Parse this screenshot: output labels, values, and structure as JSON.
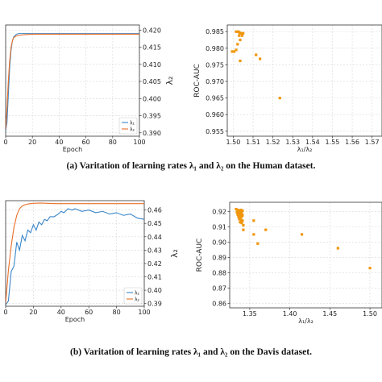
{
  "captions": {
    "a": "(a)  Varitation of learning rates λ₁ and λ₂ on the Human dataset.",
    "b": "(b)  Varitation of learning rates λ₁ and λ₂ on the Davis dataset."
  },
  "colors": {
    "lambda1": "#3a86c8",
    "lambda2": "#e8702a",
    "scatter": "#f0960c",
    "grid": "#d8d8d8"
  },
  "chart_data": [
    {
      "id": "human-lines",
      "type": "line",
      "xlabel": "Epoch",
      "ylabel": "λ₂",
      "xlim": [
        0,
        100
      ],
      "ylim": [
        0.389,
        0.4215
      ],
      "xticks": [
        0,
        20,
        40,
        60,
        80,
        100
      ],
      "yticks": [
        0.39,
        0.395,
        0.4,
        0.405,
        0.41,
        0.415,
        0.42
      ],
      "ytick_labels": [
        "0.390",
        "0.395",
        "0.400",
        "0.405",
        "0.410",
        "0.415",
        "0.420"
      ],
      "legend": [
        "λ₁",
        "λ₂"
      ],
      "legend_position": "lower-right",
      "series": [
        {
          "name": "λ₁",
          "color_key": "lambda1",
          "x": [
            0,
            1,
            2,
            3,
            4,
            5,
            6,
            8,
            10,
            15,
            20,
            40,
            60,
            80,
            100
          ],
          "y": [
            0.3905,
            0.393,
            0.401,
            0.409,
            0.414,
            0.4168,
            0.418,
            0.4188,
            0.419,
            0.419,
            0.419,
            0.419,
            0.419,
            0.419,
            0.419
          ]
        },
        {
          "name": "λ₂",
          "color_key": "lambda2",
          "x": [
            0,
            1,
            2,
            3,
            4,
            5,
            6,
            8,
            10,
            15,
            20,
            40,
            60,
            80,
            100
          ],
          "y": [
            0.391,
            0.397,
            0.405,
            0.411,
            0.4148,
            0.4168,
            0.4178,
            0.4183,
            0.4185,
            0.4187,
            0.4188,
            0.4188,
            0.4188,
            0.4188,
            0.4188
          ]
        }
      ]
    },
    {
      "id": "human-scatter",
      "type": "scatter",
      "xlabel": "λ₁/λ₂",
      "ylabel": "ROC-AUC",
      "xlim": [
        1.497,
        1.575
      ],
      "ylim": [
        0.9535,
        0.987
      ],
      "xticks": [
        1.5,
        1.51,
        1.52,
        1.53,
        1.54,
        1.55,
        1.56,
        1.57
      ],
      "xtick_labels": [
        "1.50",
        "1.51",
        "1.52",
        "1.53",
        "1.54",
        "1.55",
        "1.56",
        "1.57"
      ],
      "yticks": [
        0.955,
        0.96,
        0.965,
        0.97,
        0.975,
        0.98,
        0.985
      ],
      "ytick_labels": [
        "0.955",
        "0.960",
        "0.965",
        "0.970",
        "0.975",
        "0.980",
        "0.985"
      ],
      "points": [
        [
          1.5015,
          0.985
        ],
        [
          1.5025,
          0.985
        ],
        [
          1.503,
          0.9848
        ],
        [
          1.5035,
          0.9845
        ],
        [
          1.504,
          0.9845
        ],
        [
          1.5045,
          0.9843
        ],
        [
          1.505,
          0.9845
        ],
        [
          1.503,
          0.9838
        ],
        [
          1.5045,
          0.9838
        ],
        [
          1.5035,
          0.9825
        ],
        [
          1.5022,
          0.9812
        ],
        [
          1.5015,
          0.9795
        ],
        [
          1.4995,
          0.979
        ],
        [
          1.5005,
          0.979
        ],
        [
          1.5035,
          0.9762
        ],
        [
          1.5115,
          0.978
        ],
        [
          1.5135,
          0.9768
        ],
        [
          1.5235,
          0.965
        ]
      ]
    },
    {
      "id": "davis-lines",
      "type": "line",
      "xlabel": "Epoch",
      "ylabel": "λ₂",
      "xlim": [
        0,
        100
      ],
      "ylim": [
        0.388,
        0.467
      ],
      "xticks": [
        0,
        20,
        40,
        60,
        80,
        100
      ],
      "yticks": [
        0.39,
        0.4,
        0.41,
        0.42,
        0.43,
        0.44,
        0.45,
        0.46
      ],
      "ytick_labels": [
        "0.39",
        "0.40",
        "0.41",
        "0.42",
        "0.43",
        "0.44",
        "0.45",
        "0.46"
      ],
      "legend": [
        "λ₁",
        "λ₂"
      ],
      "legend_position": "lower-right",
      "series": [
        {
          "name": "λ₁",
          "color_key": "lambda1",
          "x": [
            0,
            2,
            4,
            6,
            8,
            10,
            12,
            14,
            16,
            18,
            20,
            22,
            24,
            26,
            28,
            30,
            32,
            35,
            38,
            40,
            42,
            45,
            48,
            50,
            55,
            60,
            65,
            70,
            75,
            80,
            85,
            90,
            95,
            100
          ],
          "y": [
            0.389,
            0.392,
            0.414,
            0.418,
            0.436,
            0.43,
            0.441,
            0.437,
            0.445,
            0.443,
            0.449,
            0.445,
            0.451,
            0.449,
            0.453,
            0.452,
            0.455,
            0.455,
            0.457,
            0.459,
            0.458,
            0.461,
            0.46,
            0.461,
            0.459,
            0.46,
            0.458,
            0.459,
            0.457,
            0.458,
            0.456,
            0.457,
            0.454,
            0.453
          ]
        },
        {
          "name": "λ₂",
          "color_key": "lambda2",
          "x": [
            0,
            2,
            4,
            6,
            8,
            10,
            12,
            14,
            16,
            18,
            20,
            25,
            30,
            35,
            40,
            50,
            60,
            70,
            80,
            90,
            100
          ],
          "y": [
            0.39,
            0.415,
            0.433,
            0.447,
            0.456,
            0.461,
            0.463,
            0.464,
            0.4645,
            0.4648,
            0.465,
            0.4652,
            0.465,
            0.4648,
            0.4648,
            0.4648,
            0.4648,
            0.4648,
            0.4648,
            0.4648,
            0.4648
          ]
        }
      ]
    },
    {
      "id": "davis-scatter",
      "type": "scatter",
      "xlabel": "λ₁/λ₂",
      "ylabel": "ROC-AUC",
      "xlim": [
        1.325,
        1.515
      ],
      "ylim": [
        0.857,
        0.926
      ],
      "xticks": [
        1.35,
        1.4,
        1.45,
        1.5
      ],
      "xtick_labels": [
        "1.35",
        "1.40",
        "1.45",
        "1.50"
      ],
      "yticks": [
        0.86,
        0.87,
        0.88,
        0.89,
        0.9,
        0.91,
        0.92
      ],
      "ytick_labels": [
        "0.86",
        "0.87",
        "0.88",
        "0.89",
        "0.90",
        "0.91",
        "0.92"
      ],
      "points": [
        [
          1.333,
          0.9215
        ],
        [
          1.335,
          0.921
        ],
        [
          1.337,
          0.9205
        ],
        [
          1.339,
          0.921
        ],
        [
          1.341,
          0.9205
        ],
        [
          1.334,
          0.9195
        ],
        [
          1.336,
          0.919
        ],
        [
          1.338,
          0.9195
        ],
        [
          1.34,
          0.919
        ],
        [
          1.335,
          0.918
        ],
        [
          1.337,
          0.9175
        ],
        [
          1.339,
          0.918
        ],
        [
          1.341,
          0.9175
        ],
        [
          1.336,
          0.9165
        ],
        [
          1.338,
          0.916
        ],
        [
          1.34,
          0.9165
        ],
        [
          1.337,
          0.915
        ],
        [
          1.339,
          0.9145
        ],
        [
          1.341,
          0.914
        ],
        [
          1.338,
          0.913
        ],
        [
          1.34,
          0.9125
        ],
        [
          1.342,
          0.911
        ],
        [
          1.355,
          0.914
        ],
        [
          1.342,
          0.908
        ],
        [
          1.355,
          0.905
        ],
        [
          1.37,
          0.908
        ],
        [
          1.36,
          0.899
        ],
        [
          1.415,
          0.905
        ],
        [
          1.46,
          0.896
        ],
        [
          1.5,
          0.883
        ]
      ]
    }
  ]
}
